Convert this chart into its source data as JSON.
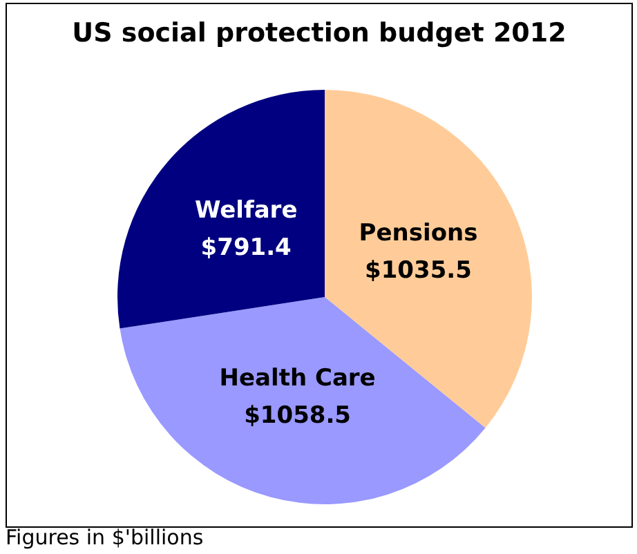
{
  "chart_data": {
    "type": "pie",
    "title": "US social protection budget 2012",
    "categories": [
      "Pensions",
      "Health Care",
      "Welfare"
    ],
    "values": [
      1035.5,
      1058.5,
      791.4
    ],
    "value_labels": [
      "$1035.5",
      "$1058.5",
      "$791.4"
    ],
    "colors": [
      "#ffcc99",
      "#9999ff",
      "#000080"
    ],
    "legend": false,
    "annotations": [
      "Figures in $'billions"
    ]
  }
}
